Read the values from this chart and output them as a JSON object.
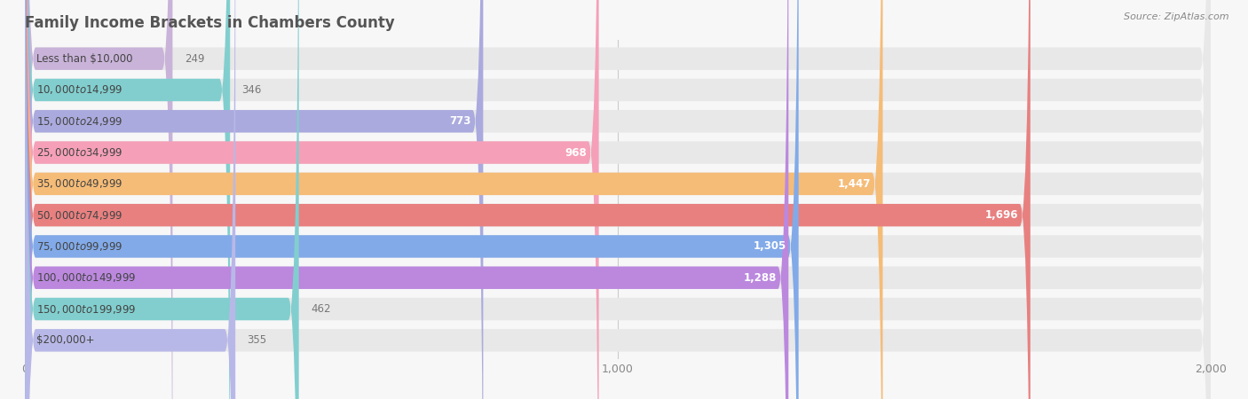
{
  "title": "Family Income Brackets in Chambers County",
  "source": "Source: ZipAtlas.com",
  "categories": [
    "Less than $10,000",
    "$10,000 to $14,999",
    "$15,000 to $24,999",
    "$25,000 to $34,999",
    "$35,000 to $49,999",
    "$50,000 to $74,999",
    "$75,000 to $99,999",
    "$100,000 to $149,999",
    "$150,000 to $199,999",
    "$200,000+"
  ],
  "values": [
    249,
    346,
    773,
    968,
    1447,
    1696,
    1305,
    1288,
    462,
    355
  ],
  "bar_colors": [
    "#c9b3d9",
    "#82cece",
    "#aaaade",
    "#f5a0b8",
    "#f5bc78",
    "#e88080",
    "#82aae8",
    "#bb88de",
    "#82cece",
    "#b8b8e8"
  ],
  "background_color": "#f7f7f7",
  "bar_bg_color": "#e8e8e8",
  "xlim": [
    0,
    2000
  ],
  "xticks": [
    0,
    1000,
    2000
  ],
  "title_color": "#555555",
  "label_color": "#555555",
  "value_color_inside": "#ffffff",
  "value_color_outside": "#777777",
  "inside_threshold": 500
}
